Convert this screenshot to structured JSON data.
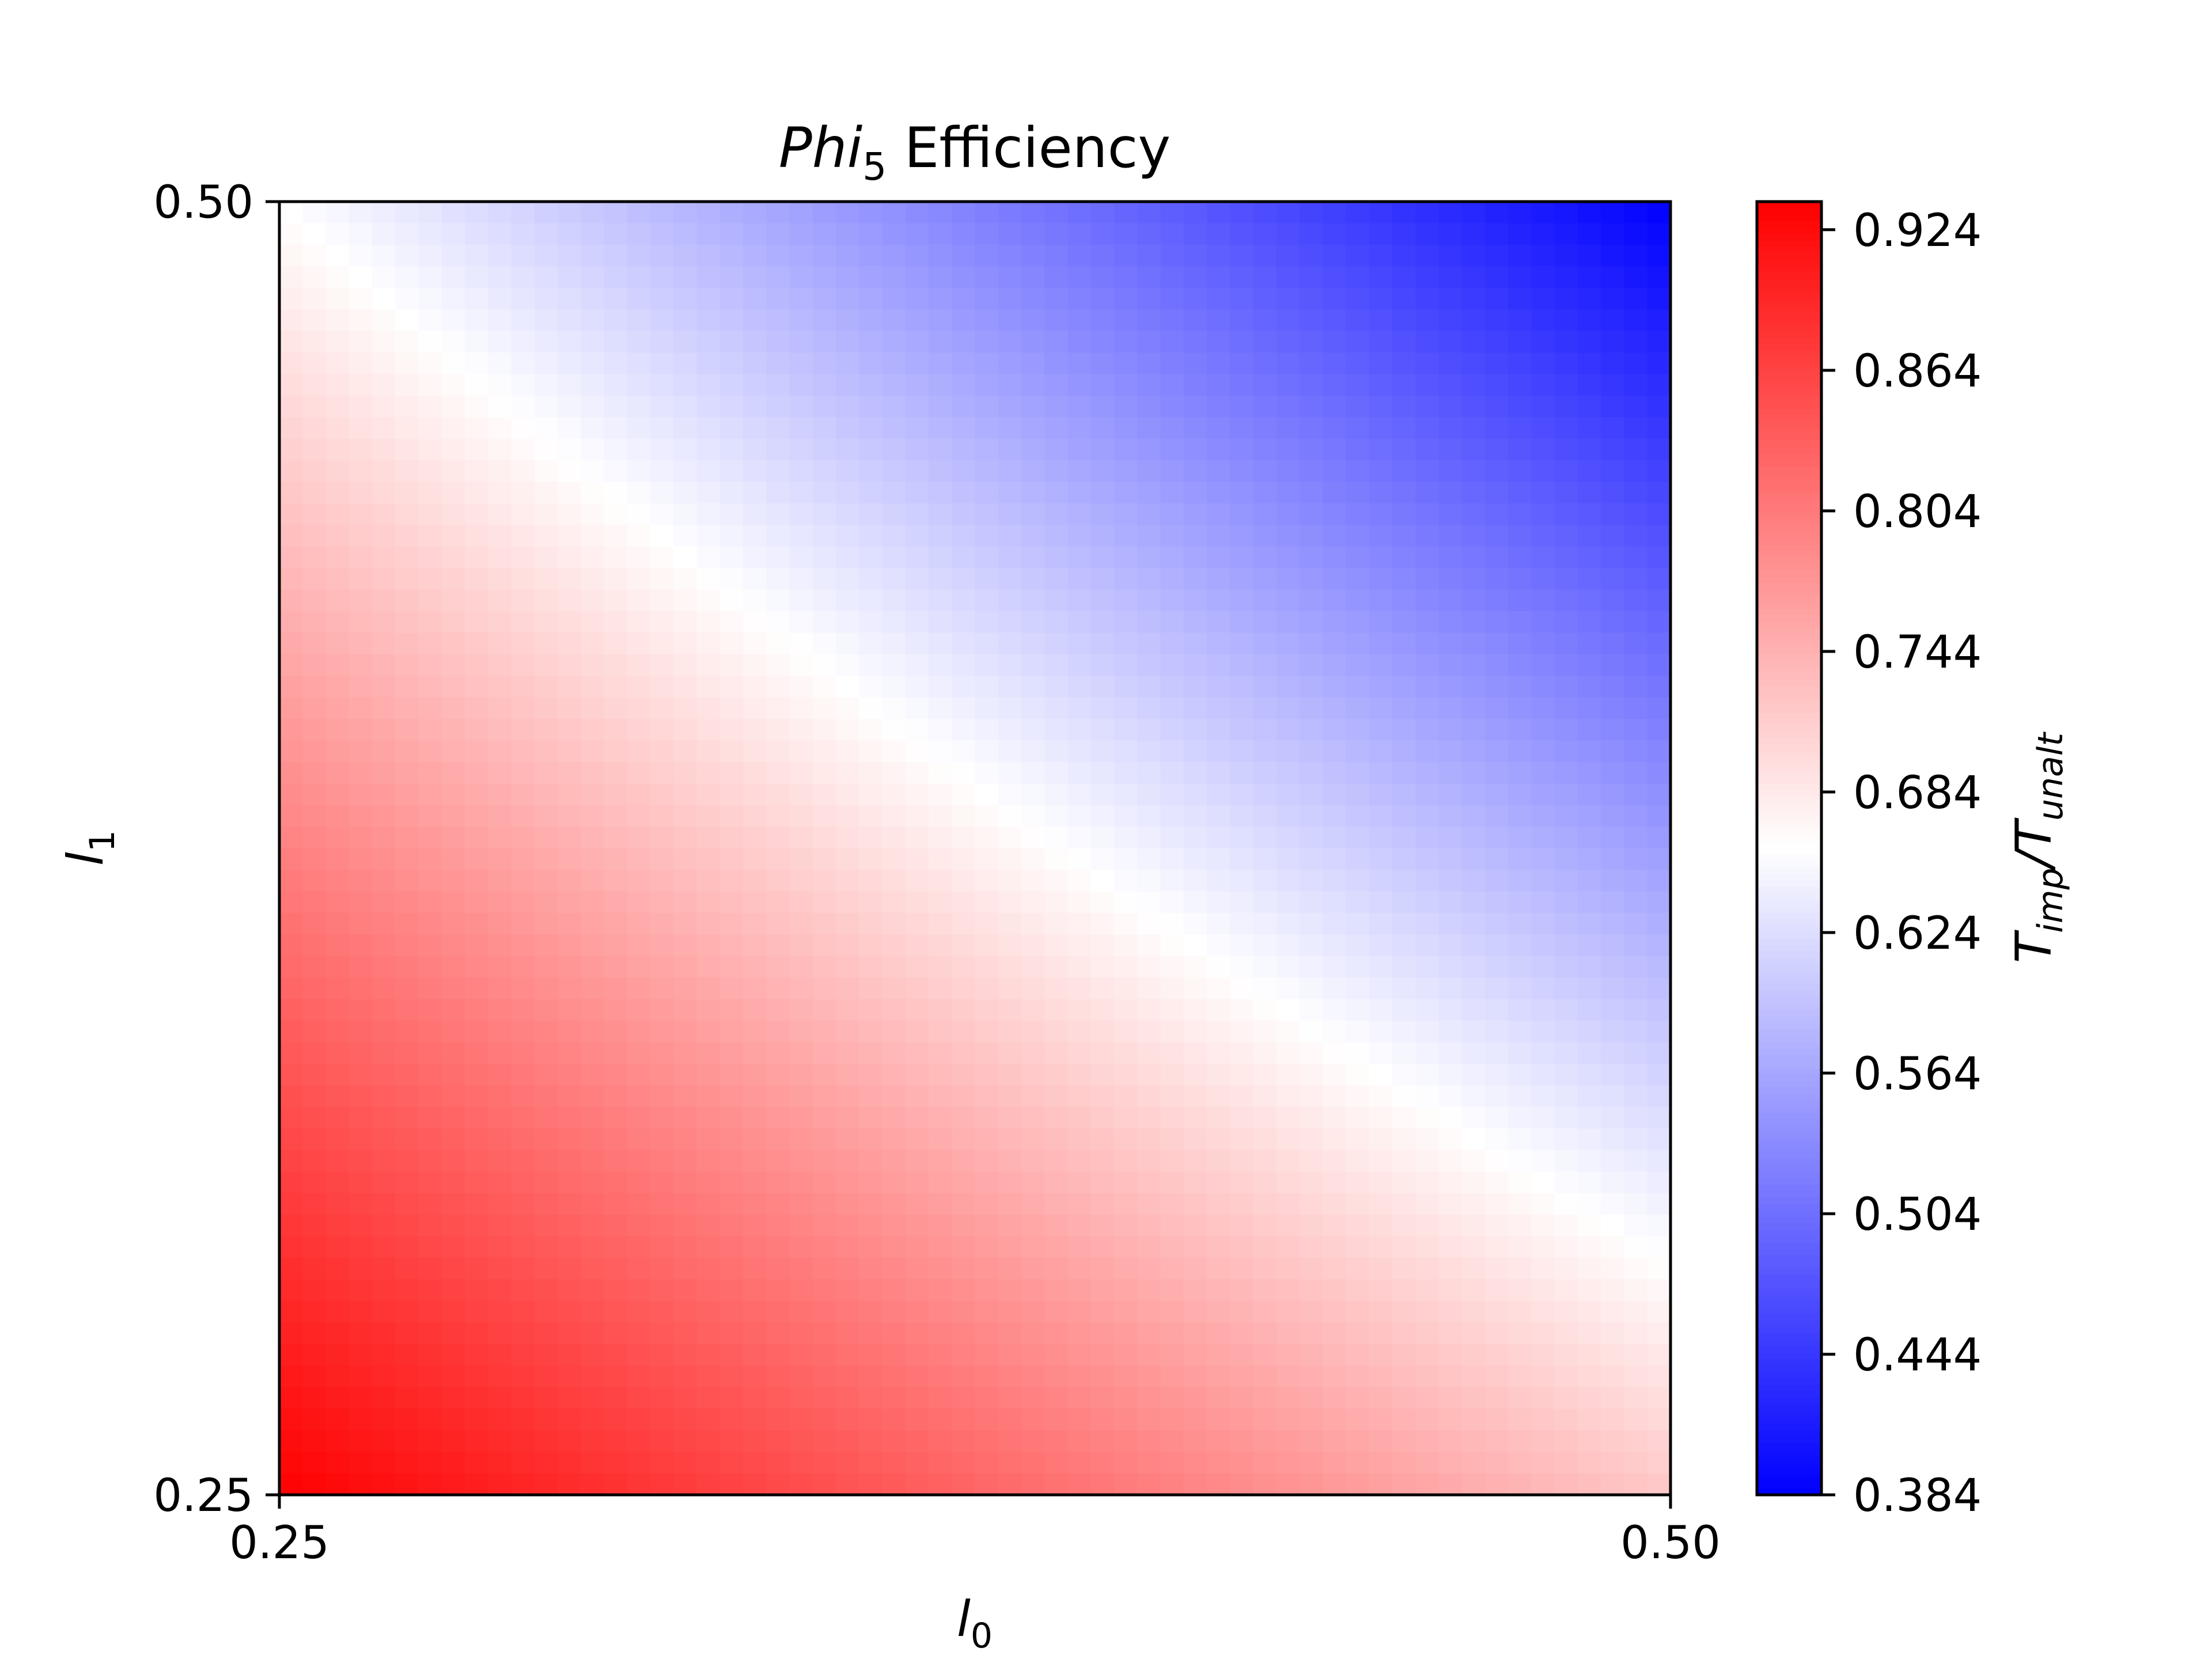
{
  "chart_data": {
    "type": "heatmap",
    "title": {
      "main": "Phi",
      "sub": "5",
      "rest": " Efficiency"
    },
    "xlabel": {
      "main": "l",
      "sub": "0"
    },
    "ylabel": {
      "main": "l",
      "sub": "1"
    },
    "x_ticks": [
      "0.25",
      "0.50"
    ],
    "x_tick_values": [
      0.25,
      0.5
    ],
    "y_ticks": [
      "0.25",
      "0.50"
    ],
    "y_tick_values": [
      0.25,
      0.5
    ],
    "xlim": [
      0.25,
      0.5
    ],
    "ylim": [
      0.25,
      0.5
    ],
    "colorbar": {
      "label": {
        "main": "T",
        "sub1": "imp",
        "mid": "/T",
        "sub2": "unalt"
      },
      "ticks": [
        "0.384",
        "0.444",
        "0.504",
        "0.564",
        "0.624",
        "0.684",
        "0.744",
        "0.804",
        "0.864",
        "0.924"
      ],
      "tick_values": [
        0.384,
        0.444,
        0.504,
        0.564,
        0.624,
        0.684,
        0.744,
        0.804,
        0.864,
        0.924
      ],
      "range": [
        0.384,
        0.936
      ],
      "colormap": "bwr",
      "color_low": "#0000ff",
      "color_mid": "#ffffff",
      "color_high": "#ff0000"
    },
    "corner_values": {
      "x0.25_y0.25": 0.936,
      "x0.50_y0.25": 0.72,
      "x0.25_y0.50": 0.66,
      "x0.50_y0.50": 0.384
    },
    "grid": false
  }
}
